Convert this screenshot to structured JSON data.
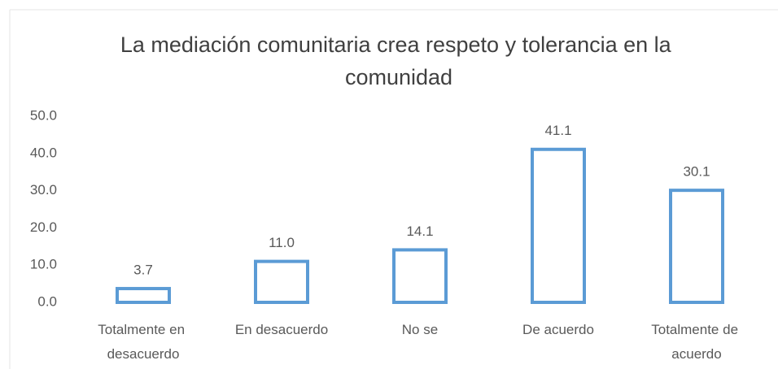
{
  "chart_data": {
    "type": "bar",
    "title": "La mediación comunitaria crea respeto y tolerancia en la comunidad",
    "categories": [
      "Totalmente en desacuerdo",
      "En desacuerdo",
      "No se",
      "De acuerdo",
      "Totalmente de acuerdo"
    ],
    "values": [
      3.7,
      11.0,
      14.1,
      41.1,
      30.1
    ],
    "value_labels": [
      "3.7",
      "11.0",
      "14.1",
      "41.1",
      "30.1"
    ],
    "color": "#5b9bd5",
    "ylim": [
      0,
      50
    ],
    "yticks": [
      {
        "value": 0,
        "label": "0.0"
      },
      {
        "value": 10,
        "label": "10.0"
      },
      {
        "value": 20,
        "label": "20.0"
      },
      {
        "value": 30,
        "label": "30.0"
      },
      {
        "value": 40,
        "label": "40.0"
      },
      {
        "value": 50,
        "label": "50.0"
      }
    ],
    "grid": false
  }
}
